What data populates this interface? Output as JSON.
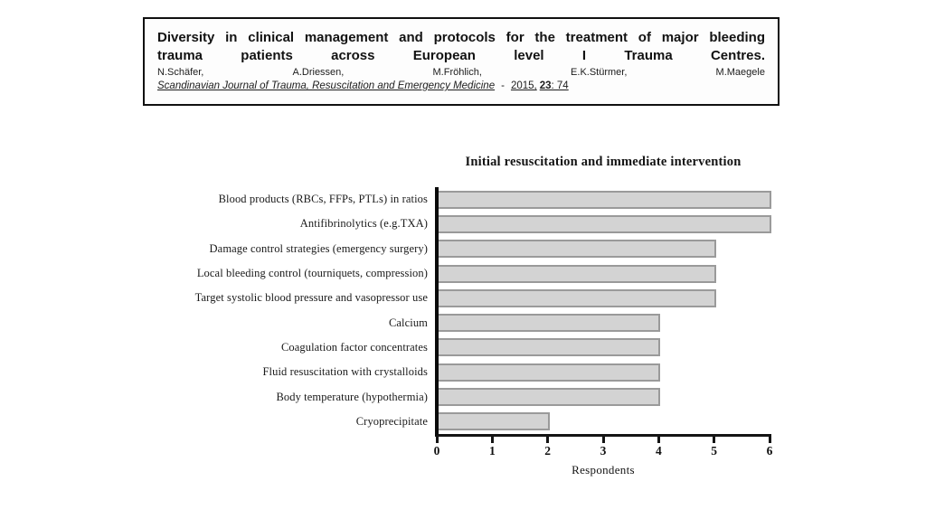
{
  "header": {
    "title_line1": "Diversity in clinical management and protocols for the treatment of major bleeding",
    "title_line2": "trauma patients across European level I Trauma Centres.",
    "authors": [
      "N.Schäfer,",
      "A.Driessen,",
      "M.Fröhlich,",
      "E.K.Stürmer,",
      "M.Maegele"
    ],
    "journal": {
      "name": "Scandinavian Journal of Trauma, Resuscitation and Emergency Medicine",
      "dash": "-",
      "year": "2015,",
      "volume": "23",
      "pages": ": 74"
    }
  },
  "chart_data": {
    "type": "bar",
    "orientation": "horizontal",
    "title": "Initial resuscitation and immediate intervention",
    "categories": [
      "Blood products (RBCs, FFPs, PTLs) in ratios",
      "Antifibrinolytics (e.g.TXA)",
      "Damage control strategies (emergency surgery)",
      "Local bleeding control (tourniquets, compression)",
      "Target systolic blood pressure and vasopressor use",
      "Calcium",
      "Coagulation factor concentrates",
      "Fluid resuscitation with crystalloids",
      "Body temperature (hypothermia)",
      "Cryoprecipitate"
    ],
    "values": [
      6,
      6,
      5,
      5,
      5,
      4,
      4,
      4,
      4,
      2
    ],
    "xlabel": "Respondents",
    "xlim": [
      0,
      6
    ],
    "xticks": [
      0,
      1,
      2,
      3,
      4,
      5,
      6
    ],
    "grid": false,
    "legend_position": "none",
    "colors": {
      "bar_fill": "#d3d3d3",
      "bar_border": "#9a9a9a",
      "axis": "#141414",
      "text": "#1a1a1a"
    }
  }
}
